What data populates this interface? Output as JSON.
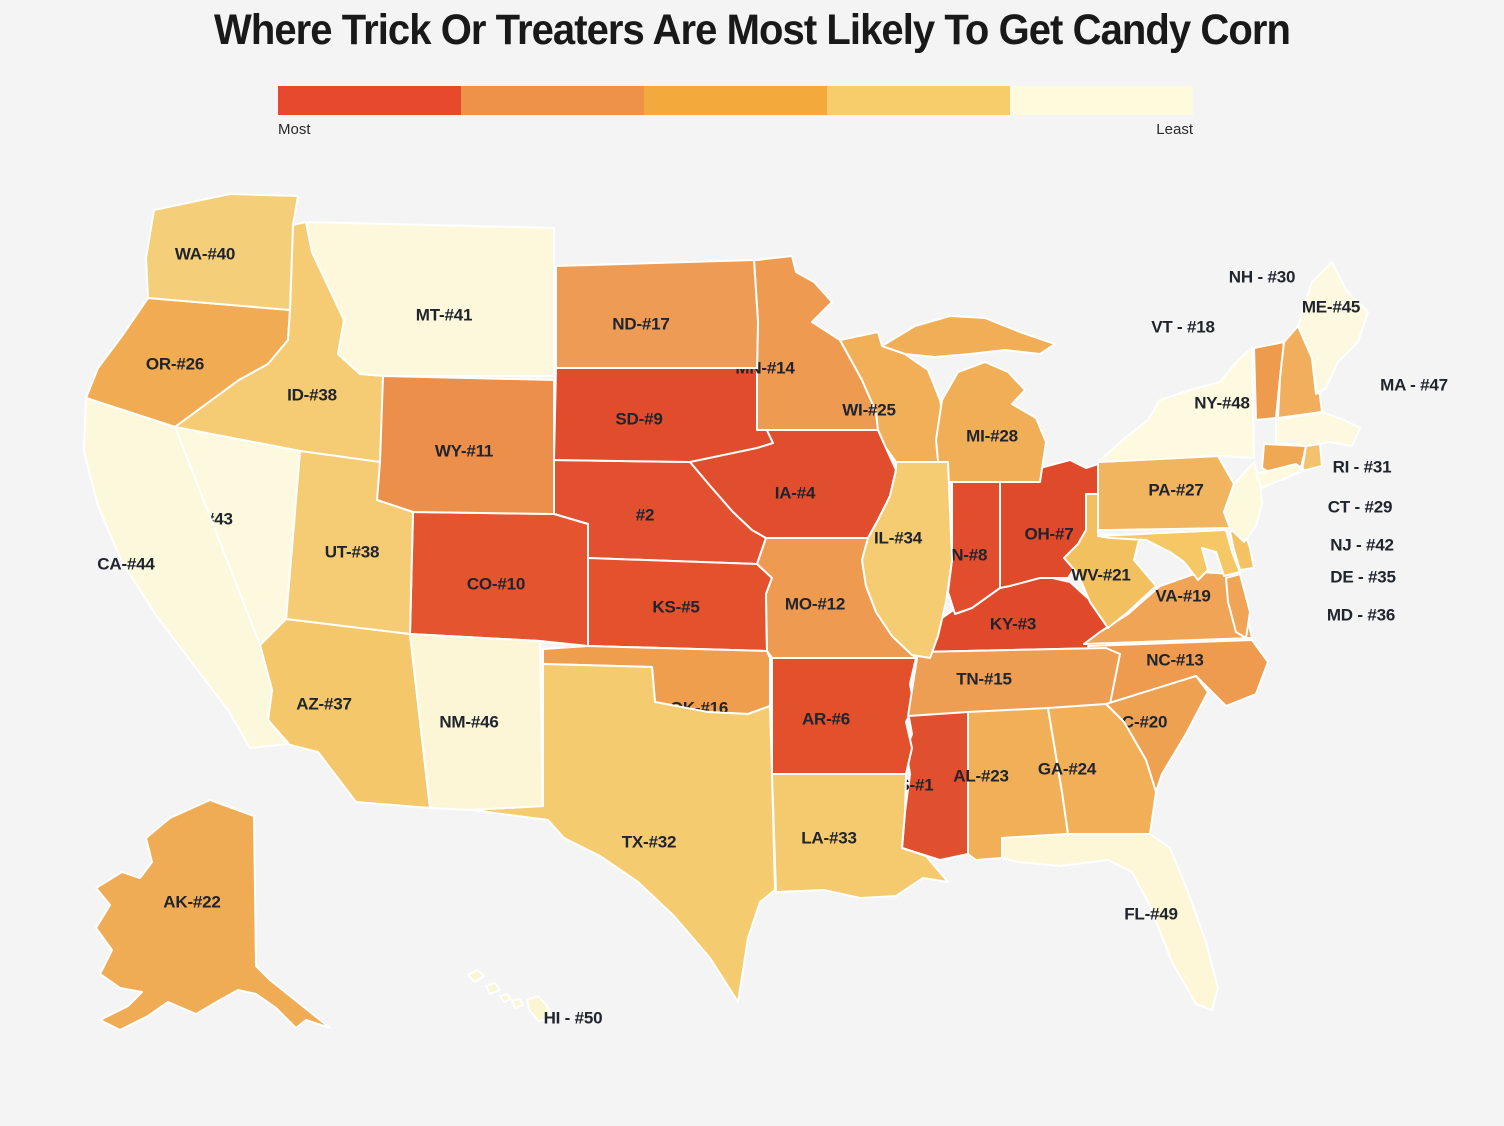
{
  "title": "Where Trick Or Treaters Are Most Likely To Get Candy Corn",
  "legend": {
    "most_label": "Most",
    "least_label": "Least",
    "colors": [
      "#E6492B",
      "#EE9149",
      "#F4A93C",
      "#F6CD6A",
      "#FEFBDC"
    ]
  },
  "map": {
    "background": "#F4F4F5",
    "stroke": "#FFFFFF",
    "label_color": "#20242C"
  },
  "states": [
    {
      "id": "MS",
      "label": "MS-#1",
      "rank": 1,
      "color": "#E1502E"
    },
    {
      "id": "NE",
      "label": "#2",
      "rank": 2,
      "color": "#E25030"
    },
    {
      "id": "KY",
      "label": "KY-#3",
      "rank": 3,
      "color": "#E04A2B"
    },
    {
      "id": "IA",
      "label": "IA-#4",
      "rank": 4,
      "color": "#E14E2D"
    },
    {
      "id": "KS",
      "label": "KS-#5",
      "rank": 5,
      "color": "#E3512D"
    },
    {
      "id": "AR",
      "label": "AR-#6",
      "rank": 6,
      "color": "#E3502C"
    },
    {
      "id": "OH",
      "label": "OH-#7",
      "rank": 7,
      "color": "#DF4A2B"
    },
    {
      "id": "IN",
      "label": "IN-#8",
      "rank": 8,
      "color": "#E14D2D"
    },
    {
      "id": "SD",
      "label": "SD-#9",
      "rank": 9,
      "color": "#E14C2C"
    },
    {
      "id": "CO",
      "label": "CO-#10",
      "rank": 10,
      "color": "#E4542E"
    },
    {
      "id": "WY",
      "label": "WY-#11",
      "rank": 11,
      "color": "#EC8F4A"
    },
    {
      "id": "MO",
      "label": "MO-#12",
      "rank": 12,
      "color": "#EE9A50"
    },
    {
      "id": "NC",
      "label": "NC-#13",
      "rank": 13,
      "color": "#EE9B4F"
    },
    {
      "id": "MN",
      "label": "MN-#14",
      "rank": 14,
      "color": "#EE9B51"
    },
    {
      "id": "TN",
      "label": "TN-#15",
      "rank": 15,
      "color": "#EE9E53"
    },
    {
      "id": "OK",
      "label": "OK-#16",
      "rank": 16,
      "color": "#EF9E4D"
    },
    {
      "id": "ND",
      "label": "ND-#17",
      "rank": 17,
      "color": "#EE9C55"
    },
    {
      "id": "VT",
      "label": "VT - #18",
      "rank": 18,
      "color": "#EE9B4E"
    },
    {
      "id": "VA",
      "label": "VA-#19",
      "rank": 19,
      "color": "#EFA456"
    },
    {
      "id": "SC",
      "label": "SC-#20",
      "rank": 20,
      "color": "#EEA251"
    },
    {
      "id": "WV",
      "label": "WV-#21",
      "rank": 21,
      "color": "#F3C05F"
    },
    {
      "id": "AK",
      "label": "AK-#22",
      "rank": 22,
      "color": "#F0AC55"
    },
    {
      "id": "AL",
      "label": "AL-#23",
      "rank": 23,
      "color": "#F1B057"
    },
    {
      "id": "GA",
      "label": "GA-#24",
      "rank": 24,
      "color": "#F1B058"
    },
    {
      "id": "WI",
      "label": "WI-#25",
      "rank": 25,
      "color": "#F1AF57"
    },
    {
      "id": "OR",
      "label": "OR-#26",
      "rank": 26,
      "color": "#F0AB53"
    },
    {
      "id": "PA",
      "label": "PA-#27",
      "rank": 27,
      "color": "#F2B55F"
    },
    {
      "id": "MI",
      "label": "MI-#28",
      "rank": 28,
      "color": "#F0AE56"
    },
    {
      "id": "CT",
      "label": "CT - #29",
      "rank": 29,
      "color": "#F0A854"
    },
    {
      "id": "NH",
      "label": "NH - #30",
      "rank": 30,
      "color": "#F1AF5D"
    },
    {
      "id": "RI",
      "label": "RI - #31",
      "rank": 31,
      "color": "#F3C26C"
    },
    {
      "id": "TX",
      "label": "TX-#32",
      "rank": 32,
      "color": "#F5CB70"
    },
    {
      "id": "LA",
      "label": "LA-#33",
      "rank": 33,
      "color": "#F5C96E"
    },
    {
      "id": "IL",
      "label": "IL-#34",
      "rank": 34,
      "color": "#F5CC72"
    },
    {
      "id": "DE",
      "label": "DE - #35",
      "rank": 35,
      "color": "#F4C262"
    },
    {
      "id": "MD",
      "label": "MD - #36",
      "rank": 36,
      "color": "#F5C765"
    },
    {
      "id": "AZ",
      "label": "AZ-#37",
      "rank": 37,
      "color": "#F4C76B"
    },
    {
      "id": "ID",
      "label": "ID-#38",
      "rank": 38,
      "color": "#F5CB74"
    },
    {
      "id": "UT",
      "label": "UT-#38",
      "rank": 38,
      "color": "#F5CB74"
    },
    {
      "id": "WA",
      "label": "WA-#40",
      "rank": 40,
      "color": "#F5CE7A"
    },
    {
      "id": "MT",
      "label": "MT-#41",
      "rank": 41,
      "color": "#FDF8DC"
    },
    {
      "id": "NJ",
      "label": "NJ - #42",
      "rank": 42,
      "color": "#FDF9DD"
    },
    {
      "id": "NV",
      "label": "NV-#43",
      "rank": 43,
      "color": "#FDF9DE"
    },
    {
      "id": "CA",
      "label": "CA-#44",
      "rank": 44,
      "color": "#FCF8DB"
    },
    {
      "id": "ME",
      "label": "ME-#45",
      "rank": 45,
      "color": "#FDF9E0"
    },
    {
      "id": "NM",
      "label": "NM-#46",
      "rank": 46,
      "color": "#FDF6D6"
    },
    {
      "id": "MA",
      "label": "MA - #47",
      "rank": 47,
      "color": "#FDF9DE"
    },
    {
      "id": "NY",
      "label": "NY-#48",
      "rank": 48,
      "color": "#FDFADF"
    },
    {
      "id": "FL",
      "label": "FL-#49",
      "rank": 49,
      "color": "#FDF7D8"
    },
    {
      "id": "HI",
      "label": "HI - #50",
      "rank": 50,
      "color": "#FBF6D2"
    }
  ]
}
